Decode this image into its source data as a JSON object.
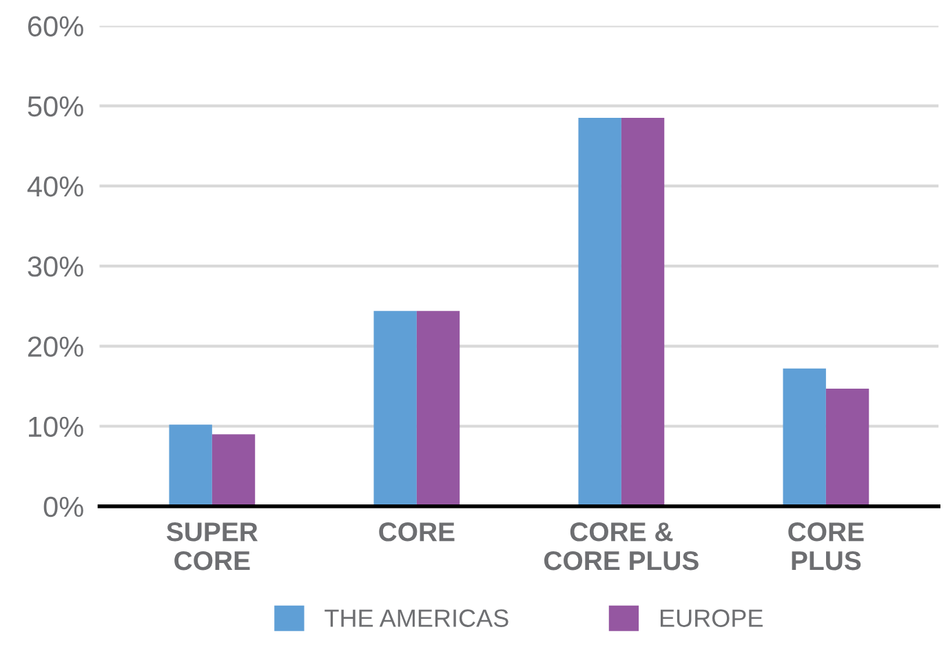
{
  "chart_data": {
    "type": "bar",
    "categories": [
      "SUPER\nCORE",
      "CORE",
      "CORE &\nCORE PLUS",
      "CORE\nPLUS"
    ],
    "series": [
      {
        "name": "THE AMERICAS",
        "color": "#5f9fd6",
        "values": [
          10.2,
          24.4,
          48.5,
          17.2
        ]
      },
      {
        "name": "EUROPE",
        "color": "#9557a1",
        "values": [
          9.0,
          24.4,
          48.5,
          14.7
        ]
      }
    ],
    "ylim": [
      0,
      60
    ],
    "yticks": [
      {
        "value": 0,
        "label": "0%"
      },
      {
        "value": 10,
        "label": "10%"
      },
      {
        "value": 20,
        "label": "20%"
      },
      {
        "value": 30,
        "label": "30%"
      },
      {
        "value": 40,
        "label": "40%"
      },
      {
        "value": 50,
        "label": "50%"
      },
      {
        "value": 60,
        "label": "60%"
      }
    ],
    "grid": "y",
    "legend": "bottom"
  }
}
